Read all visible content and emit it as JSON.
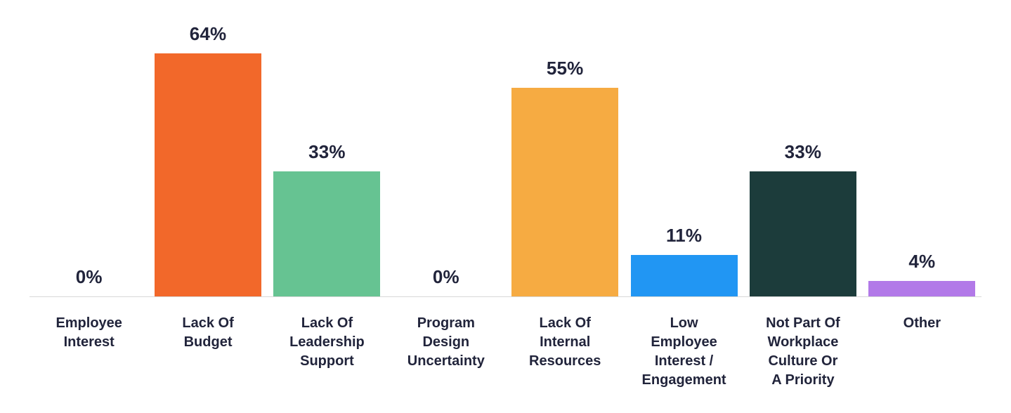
{
  "chart_data": {
    "type": "bar",
    "title": "",
    "xlabel": "",
    "ylabel": "",
    "ylim": [
      0,
      70
    ],
    "grid": false,
    "legend": false,
    "categories": [
      "Employee Interest",
      "Lack Of Budget",
      "Lack Of Leadership Support",
      "Program Design Uncertainty",
      "Lack Of Internal Resources",
      "Low Employee Interest / Engagement",
      "Not Part Of Workplace Culture Or A Priority",
      "Other"
    ],
    "label_lines": [
      [
        "Employee",
        "Interest"
      ],
      [
        "Lack Of",
        "Budget"
      ],
      [
        "Lack Of",
        "Leadership",
        "Support"
      ],
      [
        "Program",
        "Design",
        "Uncertainty"
      ],
      [
        "Lack Of",
        "Internal",
        "Resources"
      ],
      [
        "Low",
        "Employee",
        "Interest /",
        "Engagement"
      ],
      [
        "Not Part Of",
        "Workplace",
        "Culture Or",
        "A Priority"
      ],
      [
        "Other"
      ]
    ],
    "values": [
      0,
      64,
      33,
      0,
      55,
      11,
      33,
      4
    ],
    "value_labels": [
      "0%",
      "64%",
      "33%",
      "0%",
      "55%",
      "11%",
      "33%",
      "4%"
    ],
    "bar_colors": [
      "#ffffff",
      "#f2682a",
      "#66c392",
      "#ffffff",
      "#f6ab42",
      "#2196f3",
      "#1c3c3b",
      "#b279e8"
    ]
  },
  "colors": {
    "text": "#21243b",
    "axis_line": "#d8d8d8",
    "background": "#ffffff"
  }
}
